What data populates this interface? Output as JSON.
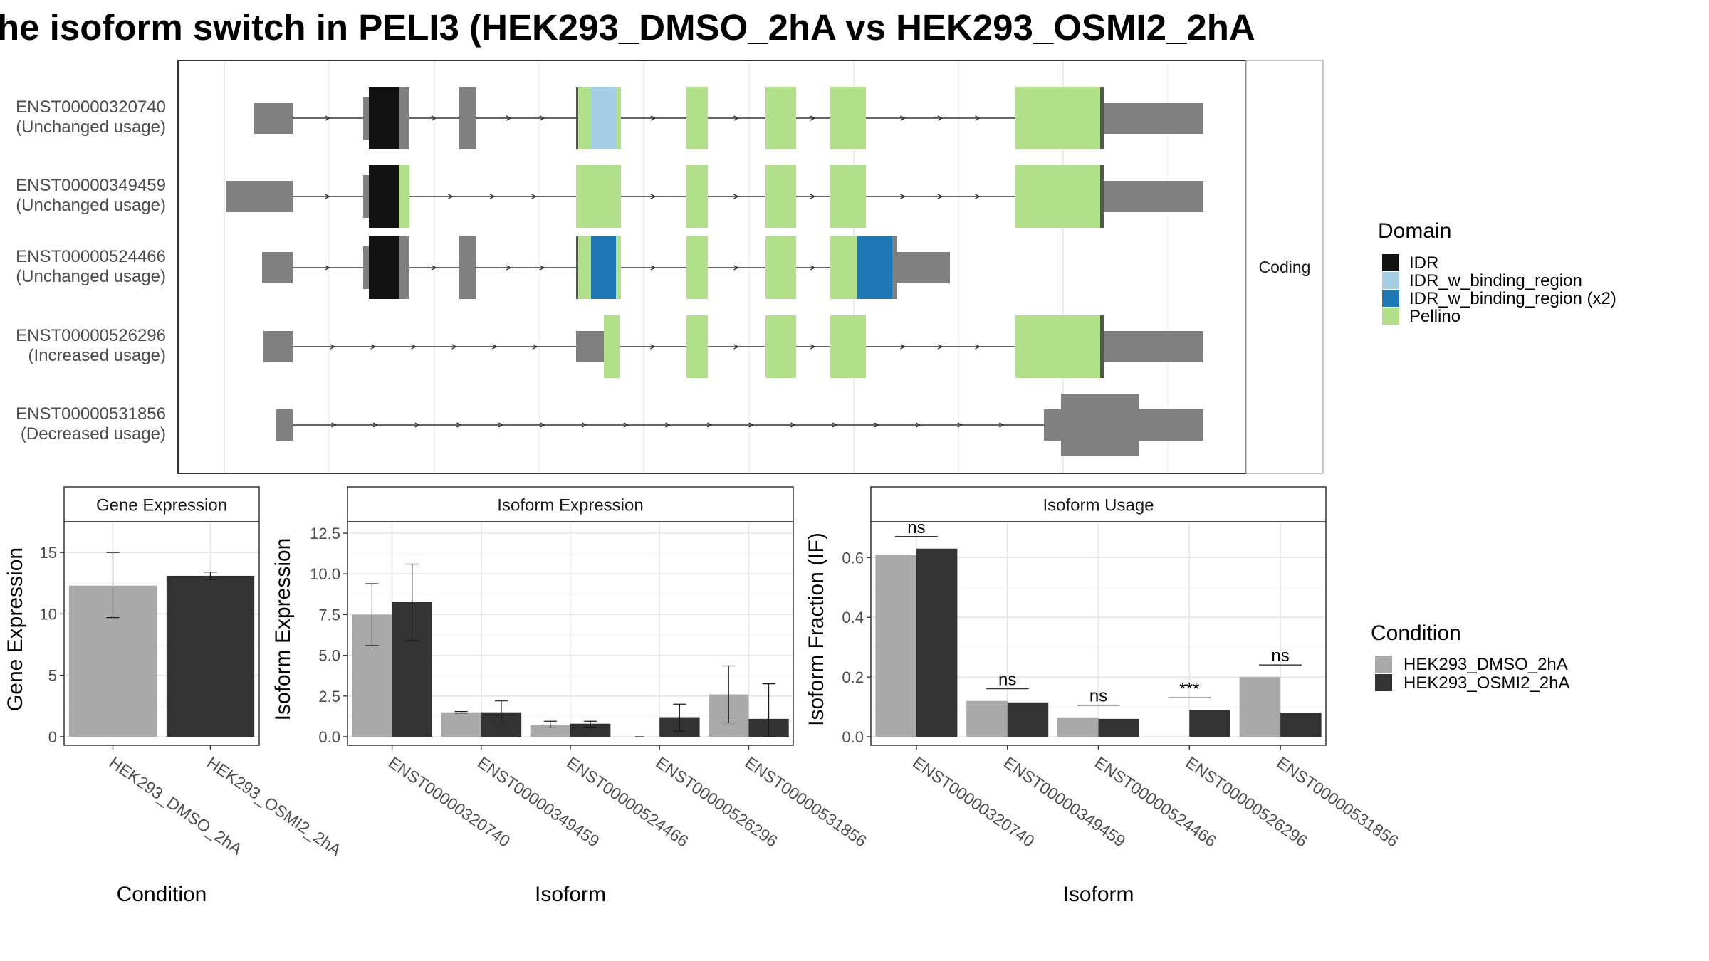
{
  "title": "he isoform switch in PELI3 (HEK293_DMSO_2hA vs HEK293_OSMI2_2hA",
  "colors": {
    "IDR": "#121212",
    "IDR_w_binding_region": "#a6cee3",
    "IDR_w_binding_region (x2)": "#1f78b4",
    "Pellino": "#b2df8a",
    "utr": "#808080",
    "dmso": "#a9a9a9",
    "osmi": "#333333"
  },
  "structure": {
    "facet_label": "Coding",
    "isoforms": [
      {
        "id": "ENST00000320740",
        "usage": "(Unchanged usage)"
      },
      {
        "id": "ENST00000349459",
        "usage": "(Unchanged usage)"
      },
      {
        "id": "ENST00000524466",
        "usage": "(Unchanged usage)"
      },
      {
        "id": "ENST00000526296",
        "usage": "(Increased usage)"
      },
      {
        "id": "ENST00000531856",
        "usage": "(Decreased usage)"
      }
    ]
  },
  "legends": {
    "domain": {
      "title": "Domain",
      "items": [
        {
          "label": "IDR",
          "color": "#121212"
        },
        {
          "label": "IDR_w_binding_region",
          "color": "#a6cee3"
        },
        {
          "label": "IDR_w_binding_region (x2)",
          "color": "#1f78b4"
        },
        {
          "label": "Pellino",
          "color": "#b2df8a"
        }
      ]
    },
    "condition": {
      "title": "Condition",
      "items": [
        {
          "label": "HEK293_DMSO_2hA",
          "color": "#a9a9a9"
        },
        {
          "label": "HEK293_OSMI2_2hA",
          "color": "#333333"
        }
      ]
    }
  },
  "chart_data": [
    {
      "type": "bar",
      "title": "Gene Expression",
      "xlabel": "Condition",
      "ylabel": "Gene Expression",
      "ylim": [
        0,
        17.5
      ],
      "yticks": [
        0,
        5,
        10,
        15
      ],
      "yticklabels": [
        "0",
        "5",
        "10",
        "15"
      ],
      "categories": [
        "HEK293_DMSO_2hA",
        "HEK293_OSMI2_2hA"
      ],
      "values": [
        12.3,
        13.1
      ],
      "error_low": [
        9.7,
        12.8
      ],
      "error_high": [
        15.0,
        13.4
      ]
    },
    {
      "type": "bar",
      "title": "Isoform Expression",
      "xlabel": "Isoform",
      "ylabel": "Isoform Expression",
      "ylim": [
        0,
        13.2
      ],
      "yticks": [
        0,
        2.5,
        5,
        7.5,
        10,
        12.5
      ],
      "yticklabels": [
        "0.0",
        "2.5",
        "5.0",
        "7.5",
        "10.0",
        "12.5"
      ],
      "categories": [
        "ENST00000320740",
        "ENST00000349459",
        "ENST00000524466",
        "ENST00000526296",
        "ENST00000531856"
      ],
      "series": [
        {
          "name": "HEK293_DMSO_2hA",
          "values": [
            7.5,
            1.5,
            0.75,
            0.0,
            2.6
          ],
          "error_low": [
            5.6,
            1.45,
            0.55,
            0.0,
            0.85
          ],
          "error_high": [
            9.4,
            1.55,
            0.95,
            0.0,
            4.35
          ]
        },
        {
          "name": "HEK293_OSMI2_2hA",
          "values": [
            8.3,
            1.5,
            0.8,
            1.2,
            1.1
          ],
          "error_low": [
            5.9,
            0.85,
            0.6,
            0.35,
            0.0
          ],
          "error_high": [
            10.6,
            2.2,
            0.95,
            2.0,
            3.25
          ]
        }
      ]
    },
    {
      "type": "bar",
      "title": "Isoform Usage",
      "xlabel": "Isoform",
      "ylabel": "Isoform Fraction (IF)",
      "ylim": [
        0,
        0.72
      ],
      "yticks": [
        0,
        0.2,
        0.4,
        0.6
      ],
      "yticklabels": [
        "0.0",
        "0.2",
        "0.4",
        "0.6"
      ],
      "categories": [
        "ENST00000320740",
        "ENST00000349459",
        "ENST00000524466",
        "ENST00000526296",
        "ENST00000531856"
      ],
      "series": [
        {
          "name": "HEK293_DMSO_2hA",
          "values": [
            0.61,
            0.12,
            0.065,
            0.0,
            0.2
          ]
        },
        {
          "name": "HEK293_OSMI2_2hA",
          "values": [
            0.63,
            0.115,
            0.06,
            0.09,
            0.08
          ]
        }
      ],
      "significance": [
        "ns",
        "ns",
        "ns",
        "***",
        "ns"
      ]
    }
  ]
}
